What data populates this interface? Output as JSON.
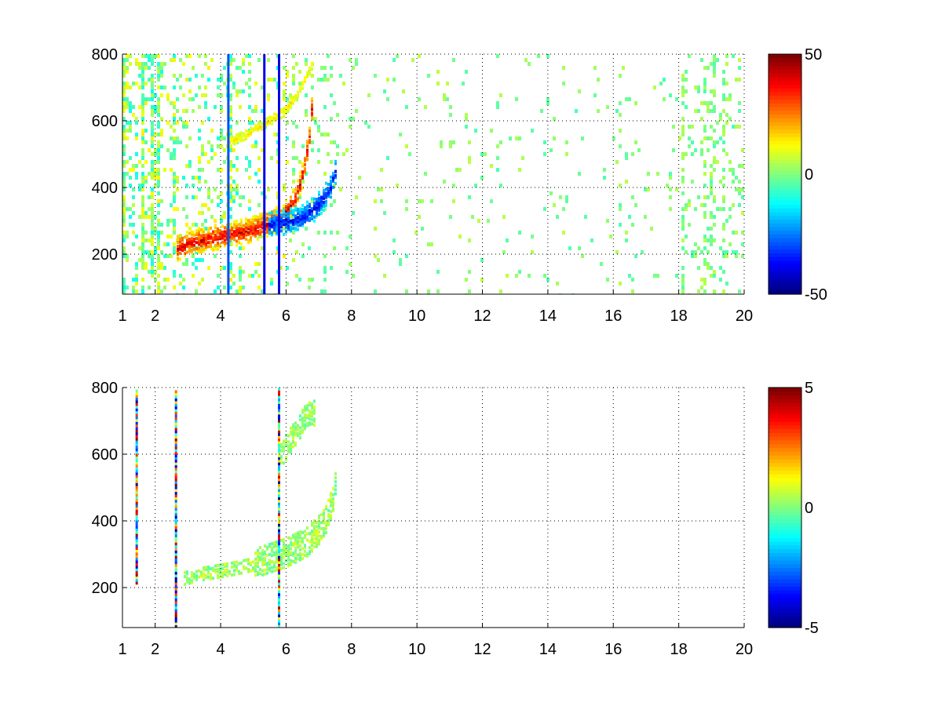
{
  "chart_data": [
    {
      "type": "heatmap",
      "title": "",
      "xlabel": "",
      "ylabel": "",
      "xlim": [
        1,
        20
      ],
      "ylim": [
        80,
        800
      ],
      "x_ticks": [
        1,
        2,
        4,
        6,
        8,
        10,
        12,
        14,
        16,
        18,
        20
      ],
      "y_ticks": [
        200,
        400,
        600,
        800
      ],
      "grid": true,
      "colormap": "jet",
      "colorbar": {
        "min": -50,
        "max": 50,
        "ticks": [
          50,
          0,
          -50
        ]
      },
      "features": {
        "curve_upper_positive": [
          [
            2.6,
            220
          ],
          [
            3.2,
            245
          ],
          [
            4.0,
            258
          ],
          [
            4.8,
            275
          ],
          [
            5.4,
            295
          ],
          [
            5.9,
            320
          ],
          [
            6.3,
            380
          ],
          [
            6.5,
            450
          ],
          [
            6.7,
            560
          ],
          [
            6.8,
            700
          ]
        ],
        "curve_lower_negative": [
          [
            5.4,
            290
          ],
          [
            5.9,
            300
          ],
          [
            6.4,
            310
          ],
          [
            6.9,
            345
          ],
          [
            7.3,
            395
          ],
          [
            7.5,
            460
          ]
        ],
        "curve_faint_upper": [
          [
            4.2,
            540
          ],
          [
            4.8,
            565
          ],
          [
            5.4,
            600
          ],
          [
            5.9,
            630
          ],
          [
            6.4,
            700
          ],
          [
            6.8,
            780
          ]
        ],
        "vertical_streaks": [
          {
            "x": 4.2,
            "value": -30
          },
          {
            "x": 5.3,
            "value": -40
          },
          {
            "x": 5.75,
            "value": -40
          }
        ]
      }
    },
    {
      "type": "heatmap",
      "title": "",
      "xlabel": "",
      "ylabel": "",
      "xlim": [
        1,
        20
      ],
      "ylim": [
        80,
        800
      ],
      "x_ticks": [
        1,
        2,
        4,
        6,
        8,
        10,
        12,
        14,
        16,
        18,
        20
      ],
      "y_ticks": [
        200,
        400,
        600,
        800
      ],
      "grid": true,
      "colormap": "jet",
      "colorbar": {
        "min": -5,
        "max": 5,
        "ticks": [
          5,
          0,
          -5
        ]
      },
      "features": {
        "curve_band": [
          [
            2.8,
            230
          ],
          [
            3.4,
            245
          ],
          [
            4.2,
            258
          ],
          [
            4.8,
            270
          ],
          [
            5.4,
            290
          ],
          [
            6.0,
            310
          ],
          [
            6.6,
            340
          ],
          [
            7.0,
            380
          ],
          [
            7.3,
            430
          ],
          [
            7.5,
            520
          ]
        ],
        "upper_branch": [
          [
            5.8,
            600
          ],
          [
            6.2,
            660
          ],
          [
            6.6,
            720
          ],
          [
            6.9,
            730
          ]
        ],
        "vertical_streaks": [
          {
            "x": 1.4,
            "y": [
              210,
              790
            ]
          },
          {
            "x": 2.6,
            "y": [
              80,
              790
            ]
          },
          {
            "x": 5.75,
            "y": [
              80,
              800
            ]
          }
        ]
      }
    }
  ]
}
